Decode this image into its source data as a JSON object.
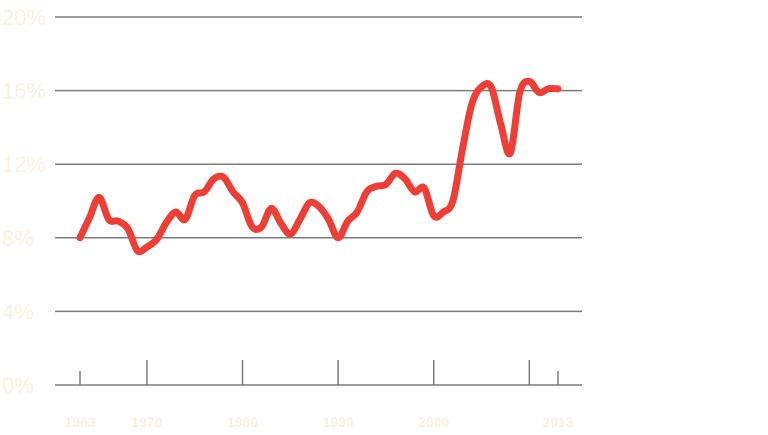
{
  "chart_data": {
    "type": "line",
    "colors": {
      "line": "#ee3e36",
      "grid": "#7c7c7c",
      "labels": "#fbf1dd"
    },
    "ylim": [
      0,
      20
    ],
    "xlim": [
      1963,
      2013
    ],
    "y_ticks": [
      {
        "value": 0,
        "label": "0%"
      },
      {
        "value": 4,
        "label": "4%"
      },
      {
        "value": 8,
        "label": "8%"
      },
      {
        "value": 12,
        "label": "12%"
      },
      {
        "value": 16,
        "label": "16%"
      },
      {
        "value": 20,
        "label": "20%"
      }
    ],
    "x_ticks": [
      {
        "value": 1963,
        "label": "1963"
      },
      {
        "value": 1970,
        "label": "1970"
      },
      {
        "value": 1980,
        "label": "1980"
      },
      {
        "value": 1990,
        "label": "1990"
      },
      {
        "value": 2000,
        "label": "2000"
      },
      {
        "value": 2010,
        "label": ""
      },
      {
        "value": 2013,
        "label": "2013"
      }
    ],
    "grid": true,
    "series": [
      {
        "x": [
          1963,
          1964,
          1965,
          1966,
          1967,
          1968,
          1969,
          1970,
          1971,
          1972,
          1973,
          1974,
          1975,
          1976,
          1977,
          1978,
          1979,
          1980,
          1981,
          1982,
          1983,
          1984,
          1985,
          1986,
          1987,
          1988,
          1989,
          1990,
          1991,
          1992,
          1993,
          1994,
          1995,
          1996,
          1997,
          1998,
          1999,
          2000,
          2001,
          2002,
          2003,
          2004,
          2005,
          2006,
          2007,
          2008,
          2009,
          2010,
          2011,
          2012,
          2013
        ],
        "values": [
          8.0,
          9.1,
          10.2,
          9.0,
          8.9,
          8.5,
          7.3,
          7.5,
          7.9,
          8.8,
          9.4,
          9.0,
          10.3,
          10.5,
          11.2,
          11.3,
          10.5,
          9.9,
          8.6,
          8.6,
          9.6,
          8.8,
          8.2,
          9.0,
          9.9,
          9.7,
          9.0,
          8.0,
          8.9,
          9.4,
          10.5,
          10.8,
          10.9,
          11.5,
          11.2,
          10.5,
          10.7,
          9.2,
          9.4,
          10.0,
          12.8,
          15.3,
          16.2,
          16.2,
          14.2,
          12.6,
          15.9,
          16.5,
          15.9,
          16.1,
          16.1
        ]
      }
    ]
  }
}
